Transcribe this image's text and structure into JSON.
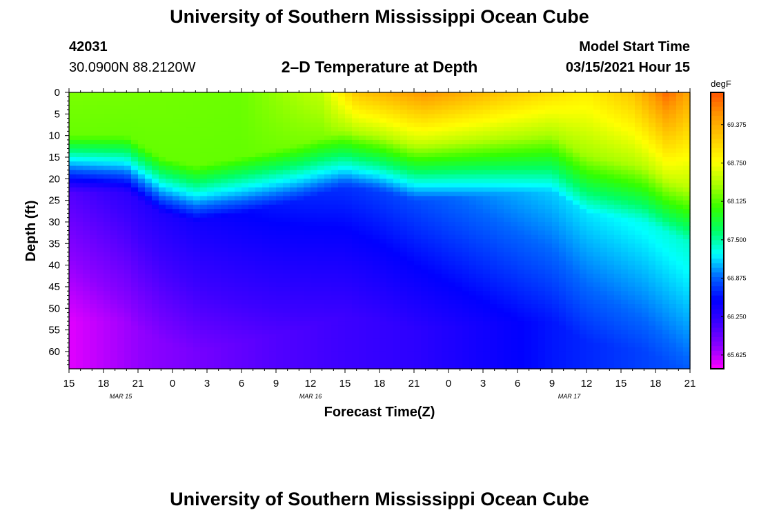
{
  "header": {
    "title": "University of Southern Mississippi Ocean Cube",
    "station_id": "42031",
    "location": "30.0900N 88.2120W",
    "subtitle": "2–D Temperature at Depth",
    "model_start_label": "Model Start Time",
    "model_start_value": "03/15/2021 Hour 15"
  },
  "footer": {
    "title": "University of Southern Mississippi Ocean Cube"
  },
  "chart_data": {
    "type": "heatmap",
    "title": "2–D Temperature at Depth",
    "xlabel": "Forecast Time(Z)",
    "ylabel": "Depth (ft)",
    "x_hours": [
      0,
      3,
      6,
      9,
      12,
      15,
      18,
      21,
      24,
      27,
      30,
      33,
      36,
      39,
      42,
      45,
      48,
      51,
      54
    ],
    "x_tick_labels": [
      "15",
      "18",
      "21",
      "0",
      "3",
      "6",
      "9",
      "12",
      "15",
      "18",
      "21",
      "0",
      "3",
      "6",
      "9",
      "12",
      "15",
      "18",
      "21"
    ],
    "date_labels": [
      {
        "label": "MAR 15",
        "hour": 4.5
      },
      {
        "label": "MAR 16",
        "hour": 21
      },
      {
        "label": "MAR 17",
        "hour": 43.5
      }
    ],
    "xlim": [
      0,
      54
    ],
    "y_ticks": [
      0,
      5,
      10,
      15,
      20,
      25,
      30,
      35,
      40,
      45,
      50,
      55,
      60
    ],
    "ylim": [
      0,
      64
    ],
    "depth_unit": "ft",
    "colorbar": {
      "unit": "degF",
      "tick_labels": [
        "69.375",
        "68.750",
        "68.125",
        "67.500",
        "66.875",
        "66.250",
        "65.625"
      ],
      "tick_values": [
        69.375,
        68.75,
        68.125,
        67.5,
        66.875,
        66.25,
        65.625
      ],
      "range": [
        65.4,
        69.9
      ],
      "colors": [
        "#ff00ff",
        "#8c00ff",
        "#3c00ff",
        "#0000ff",
        "#0066ff",
        "#00ffff",
        "#00ff66",
        "#33ff00",
        "#aaff00",
        "#ffff00",
        "#ffcc00",
        "#ff9900",
        "#ff5500"
      ]
    },
    "thermocline_depth_ft": [
      {
        "hour": 0,
        "depth": 18
      },
      {
        "hour": 5,
        "depth": 18
      },
      {
        "hour": 8,
        "depth": 23
      },
      {
        "hour": 11,
        "depth": 25
      },
      {
        "hour": 15,
        "depth": 23
      },
      {
        "hour": 20,
        "depth": 20
      },
      {
        "hour": 24,
        "depth": 17
      },
      {
        "hour": 27,
        "depth": 18
      },
      {
        "hour": 30,
        "depth": 20
      },
      {
        "hour": 36,
        "depth": 19
      },
      {
        "hour": 42,
        "depth": 18
      },
      {
        "hour": 45,
        "depth": 23
      },
      {
        "hour": 50,
        "depth": 25
      },
      {
        "hour": 54,
        "depth": 30
      }
    ],
    "surface_temp_degF": [
      {
        "hour": 0,
        "temp": 68.25
      },
      {
        "hour": 15,
        "temp": 68.2
      },
      {
        "hour": 22,
        "temp": 68.5
      },
      {
        "hour": 25,
        "temp": 69.2
      },
      {
        "hour": 31,
        "temp": 69.55
      },
      {
        "hour": 38,
        "temp": 69.2
      },
      {
        "hour": 45,
        "temp": 68.9
      },
      {
        "hour": 49,
        "temp": 69.2
      },
      {
        "hour": 52,
        "temp": 69.8
      },
      {
        "hour": 54,
        "temp": 69.4
      }
    ],
    "deep_temp_degF": [
      {
        "hour": 0,
        "temp": 65.5
      },
      {
        "hour": 6,
        "temp": 65.75
      },
      {
        "hour": 18,
        "temp": 66.05
      },
      {
        "hour": 30,
        "temp": 66.25
      },
      {
        "hour": 42,
        "temp": 66.6
      },
      {
        "hour": 54,
        "temp": 66.85
      }
    ]
  }
}
